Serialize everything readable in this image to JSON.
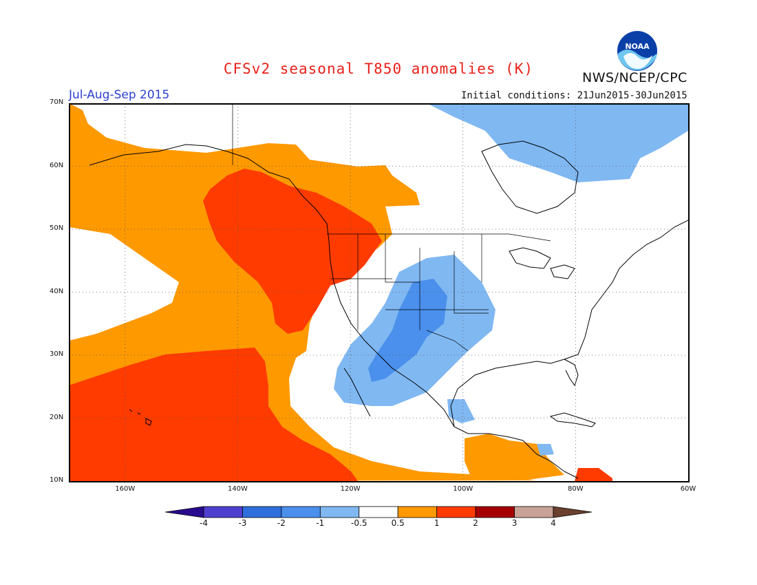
{
  "header": {
    "title": "CFSv2 seasonal T850 anomalies (K)",
    "agency": "NWS/NCEP/CPC",
    "logo_text": "NOAA",
    "season": "Jul-Aug-Sep 2015",
    "initial_conditions": "Initial conditions: 21Jun2015-30Jun2015"
  },
  "map": {
    "projection": "cylindrical",
    "extent": {
      "lon_min": -170,
      "lon_max": -60,
      "lat_min": 10,
      "lat_max": 70
    },
    "lat_ticks": [
      {
        "value": 70,
        "label": "70N"
      },
      {
        "value": 60,
        "label": "60N"
      },
      {
        "value": 50,
        "label": "50N"
      },
      {
        "value": 40,
        "label": "40N"
      },
      {
        "value": 30,
        "label": "30N"
      },
      {
        "value": 20,
        "label": "20N"
      },
      {
        "value": 10,
        "label": "10N"
      }
    ],
    "lon_ticks": [
      {
        "value": -160,
        "label": "160W"
      },
      {
        "value": -140,
        "label": "140W"
      },
      {
        "value": -120,
        "label": "120W"
      },
      {
        "value": -100,
        "label": "100W"
      },
      {
        "value": -80,
        "label": "80W"
      },
      {
        "value": -60,
        "label": "60W"
      }
    ],
    "gridlines": "dotted"
  },
  "colorbar": {
    "labels": [
      "-4",
      "-3",
      "-2",
      "-1",
      "-0.5",
      "0.5",
      "1",
      "2",
      "3",
      "4"
    ],
    "colors": [
      "#2a0b8e",
      "#4f3fd0",
      "#2f6fdb",
      "#4a90ec",
      "#80b8f2",
      "#ffffff",
      "#ff9900",
      "#ff3b00",
      "#a50000",
      "#c8a296",
      "#6b4030"
    ]
  },
  "colors": {
    "title": "#e8201a",
    "season": "#2a3fd0",
    "anom_0_5_to_1": "#ff9900",
    "anom_1_to_2": "#ff3b00",
    "anom_m1_to_m0_5": "#80b8f2",
    "anom_m2_to_m1": "#4a90ec"
  }
}
